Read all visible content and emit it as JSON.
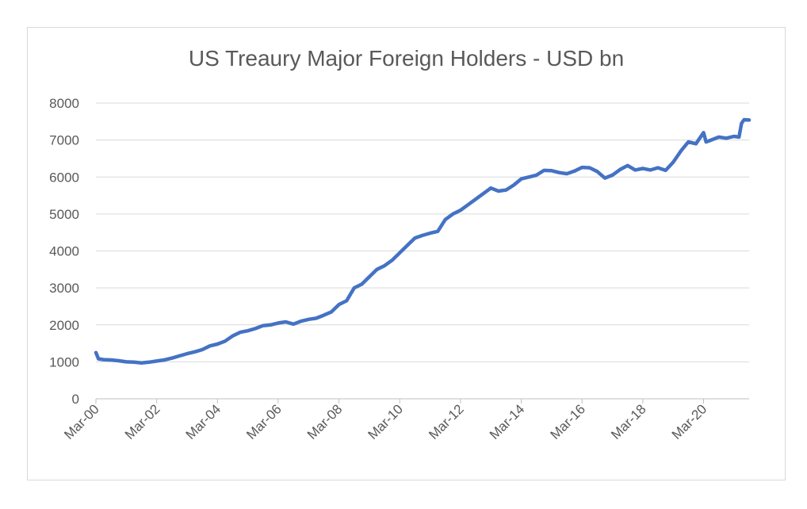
{
  "chart_data": {
    "type": "line",
    "title": "US Treaury Major Foreign Holders - USD bn",
    "xlabel": "",
    "ylabel": "",
    "ylim": [
      0,
      8000
    ],
    "yticks": [
      0,
      1000,
      2000,
      3000,
      4000,
      5000,
      6000,
      7000,
      8000
    ],
    "xticks": [
      "Mar-00",
      "Mar-02",
      "Mar-04",
      "Mar-06",
      "Mar-08",
      "Mar-10",
      "Mar-12",
      "Mar-14",
      "Mar-16",
      "Mar-18",
      "Mar-20"
    ],
    "xlim": [
      "2000-03",
      "2021-09"
    ],
    "grid": true,
    "legend": "none",
    "line_color": "#4472c4",
    "series": [
      {
        "points": [
          [
            "2000-03",
            1250
          ],
          [
            "2000-04",
            1080
          ],
          [
            "2000-06",
            1060
          ],
          [
            "2000-09",
            1050
          ],
          [
            "2000-12",
            1030
          ],
          [
            "2001-03",
            1000
          ],
          [
            "2001-06",
            990
          ],
          [
            "2001-09",
            970
          ],
          [
            "2001-12",
            990
          ],
          [
            "2002-03",
            1020
          ],
          [
            "2002-06",
            1050
          ],
          [
            "2002-09",
            1100
          ],
          [
            "2002-12",
            1160
          ],
          [
            "2003-03",
            1220
          ],
          [
            "2003-06",
            1270
          ],
          [
            "2003-09",
            1330
          ],
          [
            "2003-12",
            1430
          ],
          [
            "2004-03",
            1480
          ],
          [
            "2004-06",
            1560
          ],
          [
            "2004-09",
            1700
          ],
          [
            "2004-12",
            1800
          ],
          [
            "2005-03",
            1840
          ],
          [
            "2005-06",
            1900
          ],
          [
            "2005-09",
            1980
          ],
          [
            "2005-12",
            2000
          ],
          [
            "2006-03",
            2050
          ],
          [
            "2006-06",
            2080
          ],
          [
            "2006-09",
            2020
          ],
          [
            "2006-12",
            2100
          ],
          [
            "2007-03",
            2150
          ],
          [
            "2007-06",
            2180
          ],
          [
            "2007-09",
            2260
          ],
          [
            "2007-12",
            2350
          ],
          [
            "2008-03",
            2550
          ],
          [
            "2008-06",
            2650
          ],
          [
            "2008-09",
            3000
          ],
          [
            "2008-12",
            3100
          ],
          [
            "2009-03",
            3300
          ],
          [
            "2009-06",
            3500
          ],
          [
            "2009-09",
            3600
          ],
          [
            "2009-12",
            3750
          ],
          [
            "2010-03",
            3950
          ],
          [
            "2010-06",
            4150
          ],
          [
            "2010-09",
            4350
          ],
          [
            "2010-12",
            4420
          ],
          [
            "2011-03",
            4480
          ],
          [
            "2011-06",
            4530
          ],
          [
            "2011-09",
            4850
          ],
          [
            "2011-12",
            5000
          ],
          [
            "2012-03",
            5100
          ],
          [
            "2012-06",
            5250
          ],
          [
            "2012-09",
            5400
          ],
          [
            "2012-12",
            5550
          ],
          [
            "2013-03",
            5700
          ],
          [
            "2013-06",
            5620
          ],
          [
            "2013-09",
            5650
          ],
          [
            "2013-12",
            5780
          ],
          [
            "2014-03",
            5950
          ],
          [
            "2014-06",
            6000
          ],
          [
            "2014-09",
            6050
          ],
          [
            "2014-12",
            6180
          ],
          [
            "2015-03",
            6170
          ],
          [
            "2015-06",
            6120
          ],
          [
            "2015-09",
            6090
          ],
          [
            "2015-12",
            6160
          ],
          [
            "2016-03",
            6260
          ],
          [
            "2016-06",
            6250
          ],
          [
            "2016-09",
            6150
          ],
          [
            "2016-12",
            5970
          ],
          [
            "2017-03",
            6050
          ],
          [
            "2017-06",
            6200
          ],
          [
            "2017-09",
            6310
          ],
          [
            "2017-12",
            6190
          ],
          [
            "2018-03",
            6230
          ],
          [
            "2018-06",
            6190
          ],
          [
            "2018-09",
            6250
          ],
          [
            "2018-12",
            6180
          ],
          [
            "2019-03",
            6400
          ],
          [
            "2019-06",
            6700
          ],
          [
            "2019-09",
            6950
          ],
          [
            "2019-12",
            6900
          ],
          [
            "2020-03",
            7200
          ],
          [
            "2020-04",
            6950
          ],
          [
            "2020-06",
            7000
          ],
          [
            "2020-09",
            7080
          ],
          [
            "2020-12",
            7050
          ],
          [
            "2021-03",
            7100
          ],
          [
            "2021-05",
            7080
          ],
          [
            "2021-06",
            7450
          ],
          [
            "2021-07",
            7550
          ],
          [
            "2021-09",
            7540
          ]
        ]
      }
    ]
  }
}
